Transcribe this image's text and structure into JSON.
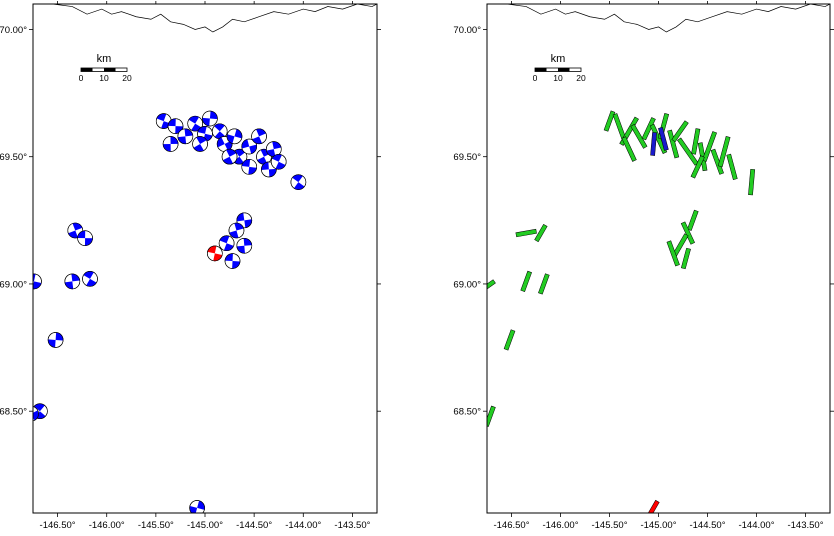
{
  "scale_bar": {
    "unit": "km",
    "ticks": [
      "0",
      "10",
      "20"
    ]
  },
  "axes": {
    "x_ticks": [
      "-146.50°",
      "-146.00°",
      "-145.50°",
      "-145.00°",
      "-144.50°",
      "-144.00°",
      "-143.50°"
    ],
    "y_ticks": [
      "70.00°",
      "69.50°",
      "69.00°",
      "68.50°"
    ]
  },
  "colors": {
    "mechanism_fill": "#0000ff",
    "highlight_fill": "#ff0000",
    "stress_axis_fill": "#22cc22",
    "stress_axis_highlight": "#1a1acc",
    "coastline": "#000000"
  },
  "panels": [
    {
      "id": "focal-mechanisms",
      "marker": "beachball",
      "events": [
        {
          "lon": -145.42,
          "lat": 69.64,
          "type": "A"
        },
        {
          "lon": -145.3,
          "lat": 69.62,
          "type": "B"
        },
        {
          "lon": -145.2,
          "lat": 69.58,
          "type": "C"
        },
        {
          "lon": -145.1,
          "lat": 69.63,
          "type": "A"
        },
        {
          "lon": -145.0,
          "lat": 69.59,
          "type": "B"
        },
        {
          "lon": -144.95,
          "lat": 69.65,
          "type": "C"
        },
        {
          "lon": -144.85,
          "lat": 69.6,
          "type": "A"
        },
        {
          "lon": -144.8,
          "lat": 69.55,
          "type": "B"
        },
        {
          "lon": -144.7,
          "lat": 69.58,
          "type": "C"
        },
        {
          "lon": -144.65,
          "lat": 69.5,
          "type": "A"
        },
        {
          "lon": -144.55,
          "lat": 69.54,
          "type": "B"
        },
        {
          "lon": -144.45,
          "lat": 69.58,
          "type": "C"
        },
        {
          "lon": -144.4,
          "lat": 69.5,
          "type": "A"
        },
        {
          "lon": -144.35,
          "lat": 69.45,
          "type": "B"
        },
        {
          "lon": -144.3,
          "lat": 69.53,
          "type": "C"
        },
        {
          "lon": -144.25,
          "lat": 69.48,
          "type": "A"
        },
        {
          "lon": -144.55,
          "lat": 69.46,
          "type": "B"
        },
        {
          "lon": -145.35,
          "lat": 69.55,
          "type": "C"
        },
        {
          "lon": -144.05,
          "lat": 69.4,
          "type": "A"
        },
        {
          "lon": -144.75,
          "lat": 69.5,
          "type": "C"
        },
        {
          "lon": -145.05,
          "lat": 69.55,
          "type": "A"
        },
        {
          "lon": -144.6,
          "lat": 69.25,
          "type": "B"
        },
        {
          "lon": -144.68,
          "lat": 69.21,
          "type": "C"
        },
        {
          "lon": -144.78,
          "lat": 69.16,
          "type": "A"
        },
        {
          "lon": -144.72,
          "lat": 69.09,
          "type": "B"
        },
        {
          "lon": -144.6,
          "lat": 69.15,
          "type": "C"
        },
        {
          "lon": -144.9,
          "lat": 69.12,
          "type": "highlight"
        },
        {
          "lon": -146.32,
          "lat": 69.21,
          "type": "A"
        },
        {
          "lon": -146.22,
          "lat": 69.18,
          "type": "B"
        },
        {
          "lon": -146.35,
          "lat": 69.01,
          "type": "C"
        },
        {
          "lon": -146.17,
          "lat": 69.02,
          "type": "A"
        },
        {
          "lon": -146.74,
          "lat": 69.01,
          "type": "B"
        },
        {
          "lon": -146.52,
          "lat": 68.78,
          "type": "C"
        },
        {
          "lon": -146.68,
          "lat": 68.5,
          "type": "A"
        },
        {
          "lon": -146.77,
          "lat": 68.49,
          "type": "B"
        },
        {
          "lon": -145.08,
          "lat": 68.12,
          "type": "C"
        }
      ]
    },
    {
      "id": "stress-axes",
      "marker": "bar",
      "events": [
        {
          "lon": -145.5,
          "lat": 69.64,
          "az": 20,
          "len": 0.08
        },
        {
          "lon": -145.4,
          "lat": 69.62,
          "az": -20,
          "len": 0.1
        },
        {
          "lon": -145.3,
          "lat": 69.6,
          "az": 30,
          "len": 0.12
        },
        {
          "lon": -145.2,
          "lat": 69.58,
          "az": -30,
          "len": 0.1
        },
        {
          "lon": -145.1,
          "lat": 69.61,
          "az": 25,
          "len": 0.09
        },
        {
          "lon": -145.0,
          "lat": 69.57,
          "az": -25,
          "len": 0.12
        },
        {
          "lon": -144.95,
          "lat": 69.62,
          "az": 15,
          "len": 0.1
        },
        {
          "lon": -144.85,
          "lat": 69.55,
          "az": -15,
          "len": 0.11
        },
        {
          "lon": -144.78,
          "lat": 69.6,
          "az": 35,
          "len": 0.09
        },
        {
          "lon": -144.7,
          "lat": 69.52,
          "az": -35,
          "len": 0.12
        },
        {
          "lon": -144.62,
          "lat": 69.56,
          "az": 10,
          "len": 0.1
        },
        {
          "lon": -144.55,
          "lat": 69.5,
          "az": -10,
          "len": 0.11
        },
        {
          "lon": -144.48,
          "lat": 69.54,
          "az": 20,
          "len": 0.12
        },
        {
          "lon": -144.4,
          "lat": 69.48,
          "az": -20,
          "len": 0.1
        },
        {
          "lon": -144.33,
          "lat": 69.52,
          "az": 15,
          "len": 0.12
        },
        {
          "lon": -144.25,
          "lat": 69.46,
          "az": -15,
          "len": 0.1
        },
        {
          "lon": -144.6,
          "lat": 69.46,
          "az": 25,
          "len": 0.09
        },
        {
          "lon": -145.3,
          "lat": 69.53,
          "az": -25,
          "len": 0.1
        },
        {
          "lon": -144.05,
          "lat": 69.4,
          "az": 5,
          "len": 0.1
        },
        {
          "lon": -144.65,
          "lat": 69.25,
          "az": 20,
          "len": 0.08
        },
        {
          "lon": -144.7,
          "lat": 69.2,
          "az": -25,
          "len": 0.09
        },
        {
          "lon": -144.78,
          "lat": 69.15,
          "az": 30,
          "len": 0.1
        },
        {
          "lon": -144.85,
          "lat": 69.12,
          "az": -20,
          "len": 0.1
        },
        {
          "lon": -144.72,
          "lat": 69.1,
          "az": 15,
          "len": 0.08
        },
        {
          "lon": -146.35,
          "lat": 69.2,
          "az": 80,
          "len": 0.08
        },
        {
          "lon": -146.2,
          "lat": 69.2,
          "az": 30,
          "len": 0.07
        },
        {
          "lon": -146.35,
          "lat": 69.01,
          "az": 20,
          "len": 0.08
        },
        {
          "lon": -146.17,
          "lat": 69.0,
          "az": 20,
          "len": 0.08
        },
        {
          "lon": -146.75,
          "lat": 68.99,
          "az": 55,
          "len": 0.07
        },
        {
          "lon": -146.52,
          "lat": 68.78,
          "az": 20,
          "len": 0.08
        },
        {
          "lon": -146.72,
          "lat": 68.48,
          "az": 20,
          "len": 0.08
        },
        {
          "lon": -145.05,
          "lat": 69.55,
          "az": 5,
          "len": 0.09,
          "highlight": "blue"
        },
        {
          "lon": -144.95,
          "lat": 69.57,
          "az": -15,
          "len": 0.09,
          "highlight": "blue"
        },
        {
          "lon": -145.05,
          "lat": 68.12,
          "az": 30,
          "len": 0.06,
          "highlight": "red"
        }
      ]
    }
  ]
}
